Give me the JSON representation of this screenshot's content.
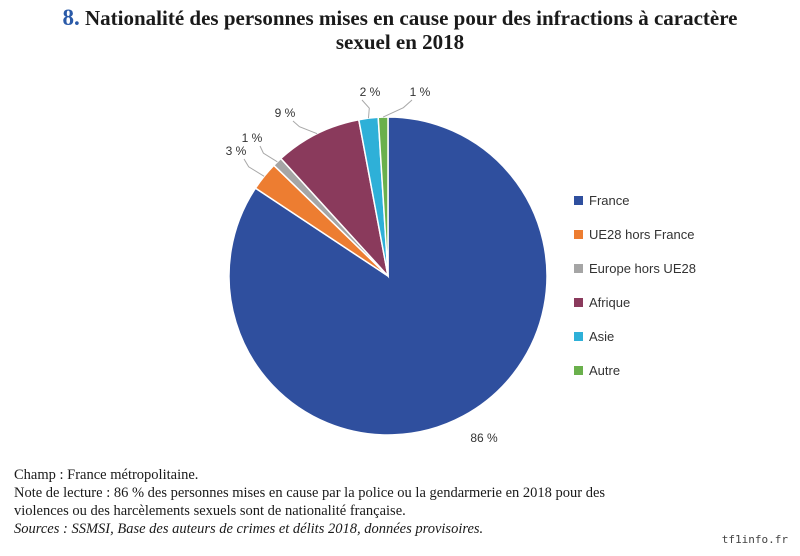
{
  "title": {
    "number": "8.",
    "line1": "Nationalité des personnes mises en cause pour des infractions à caractère",
    "line2": "sexuel en 2018"
  },
  "chart_data": {
    "type": "pie",
    "legend_position": "right",
    "slices": [
      {
        "name": "France",
        "value": 86,
        "label": "86 %",
        "color": "#2f4f9e"
      },
      {
        "name": "UE28 hors France",
        "value": 3,
        "label": "3 %",
        "color": "#ed7d31"
      },
      {
        "name": "Europe hors UE28",
        "value": 1,
        "label": "1 %",
        "color": "#a5a5a5"
      },
      {
        "name": "Afrique",
        "value": 9,
        "label": "9 %",
        "color": "#8a3a5c"
      },
      {
        "name": "Asie",
        "value": 2,
        "label": "2 %",
        "color": "#2eb0d8"
      },
      {
        "name": "Autre",
        "value": 1,
        "label": "1 %",
        "color": "#6ab04c"
      }
    ]
  },
  "notes": {
    "champ": "Champ : France métropolitaine.",
    "lecture_line1": "Note de lecture : 86 % des personnes mises en cause par la police ou la gendarmerie en 2018 pour des",
    "lecture_line2": "violences ou des harcèlements sexuels sont de nationalité française.",
    "sources": "Sources : SSMSI, Base des auteurs de crimes et délits 2018, données provisoires."
  },
  "watermark": "tf1info.fr"
}
